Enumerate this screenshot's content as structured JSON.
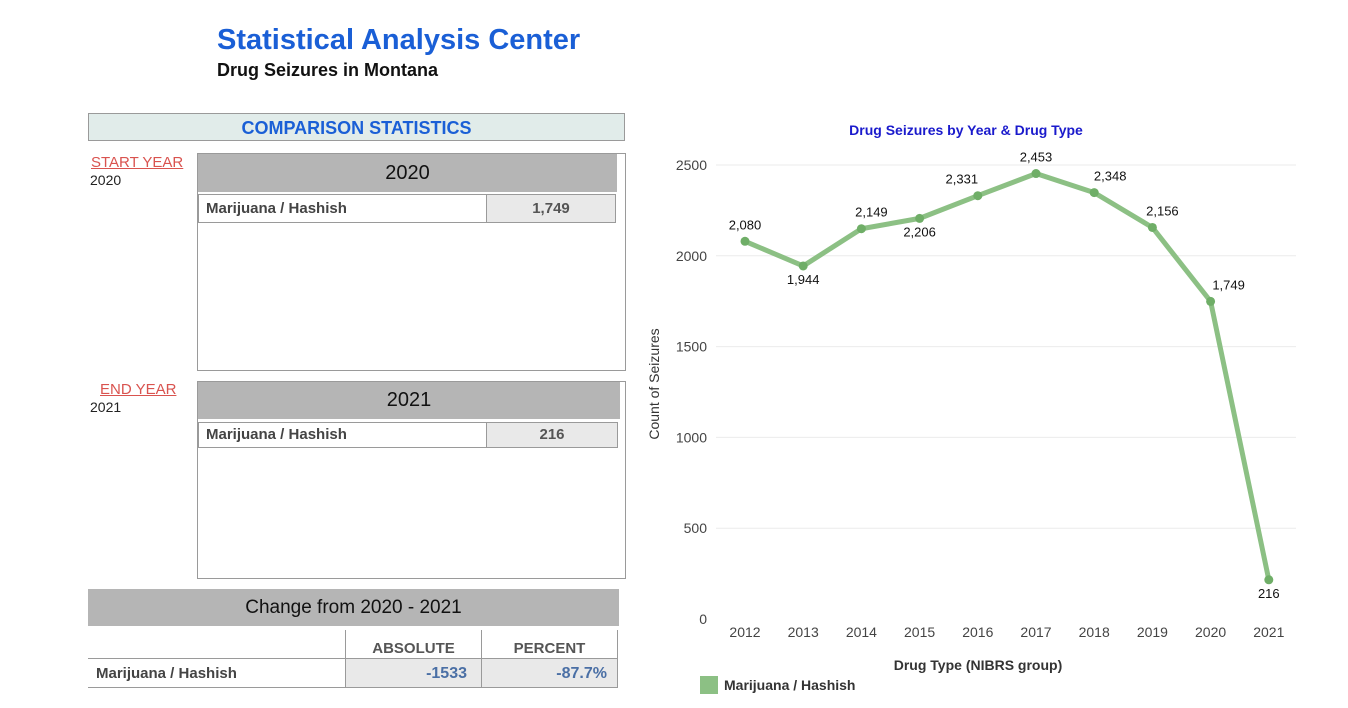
{
  "header": {
    "title": "Statistical Analysis Center",
    "subtitle": "Drug Seizures in Montana"
  },
  "comparison": {
    "header": "COMPARISON STATISTICS",
    "start": {
      "link_label": "START YEAR",
      "year_value": "2020",
      "panel_year": "2020",
      "row_label": "Marijuana / Hashish",
      "row_value": "1,749"
    },
    "end": {
      "link_label": "END YEAR",
      "year_value": "2021",
      "panel_year": "2021",
      "row_label": "Marijuana / Hashish",
      "row_value": "216"
    }
  },
  "change": {
    "header": "Change from 2020 - 2021",
    "col_absolute": "ABSOLUTE",
    "col_percent": "PERCENT",
    "row_label": "Marijuana / Hashish",
    "absolute": "-1533",
    "percent": "-87.7%"
  },
  "chart_data": {
    "type": "line",
    "title": "Drug Seizures by Year & Drug Type",
    "xlabel": "Drug Type (NIBRS group)",
    "ylabel": "Count of Seizures",
    "x": [
      "2012",
      "2013",
      "2014",
      "2015",
      "2016",
      "2017",
      "2018",
      "2019",
      "2020",
      "2021"
    ],
    "series": [
      {
        "name": "Marijuana / Hashish",
        "values": [
          2080,
          1944,
          2149,
          2206,
          2331,
          2453,
          2348,
          2156,
          1749,
          216
        ],
        "labels": [
          "2,080",
          "1,944",
          "2,149",
          "2,206",
          "2,331",
          "2,453",
          "2,348",
          "2,156",
          "1,749",
          "216"
        ],
        "color": "#8cc084"
      }
    ],
    "ylim": [
      0,
      2500
    ],
    "yticks": [
      0,
      500,
      1000,
      1500,
      2000,
      2500
    ],
    "grid": true,
    "legend": "bottom-left"
  },
  "colors": {
    "title_blue": "#1a5fd6",
    "chart_title_blue": "#1a1acc",
    "link_red": "#d9534f",
    "line_green": "#8cc084"
  }
}
